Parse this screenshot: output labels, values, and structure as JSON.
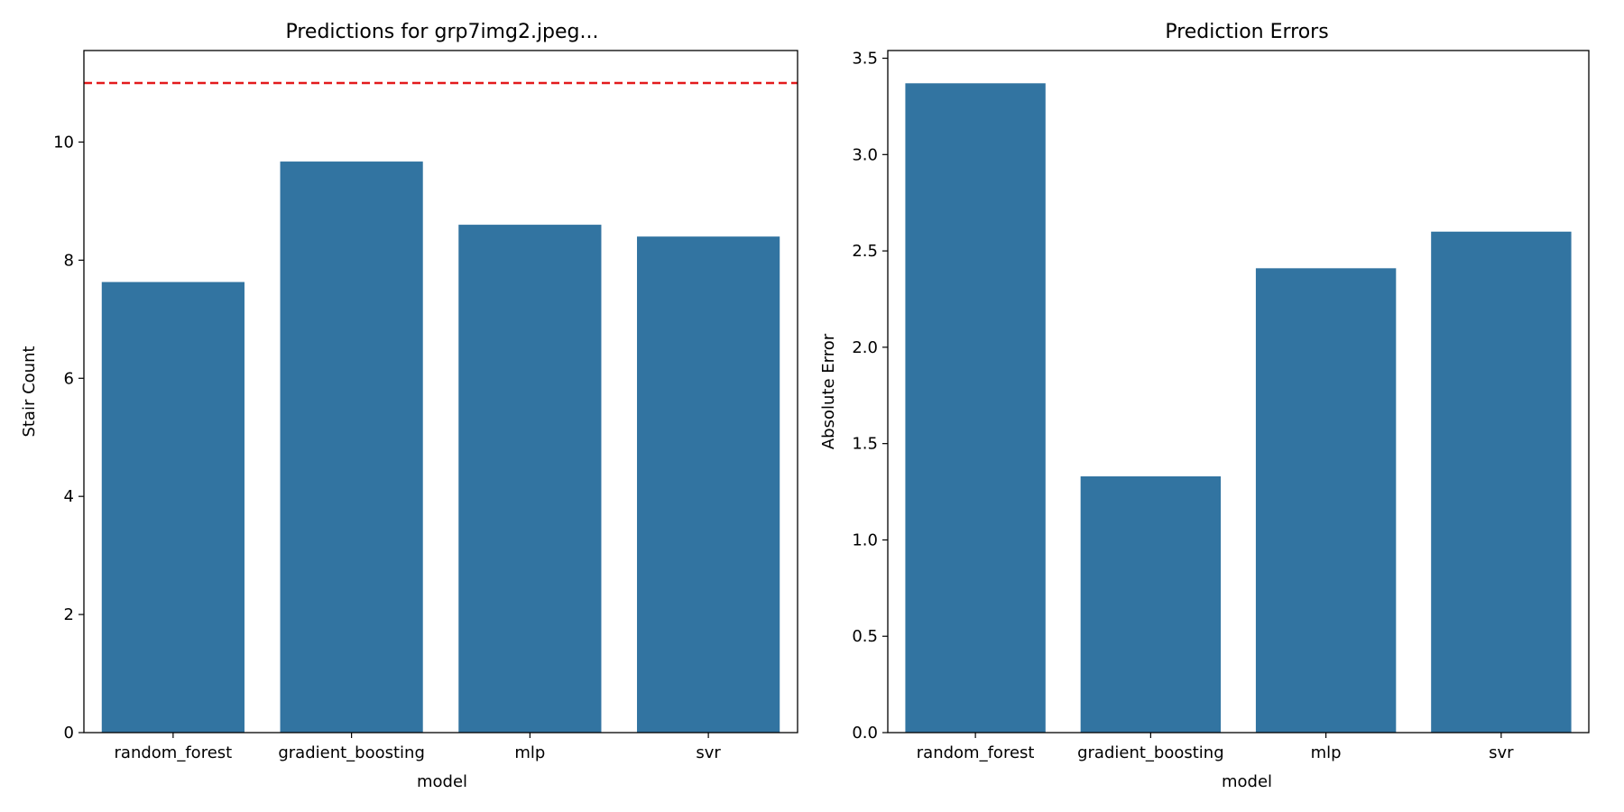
{
  "chart_data": [
    {
      "type": "bar",
      "title": "Predictions for grp7img2.jpeg...",
      "xlabel": "model",
      "ylabel": "Stair Count",
      "categories": [
        "random_forest",
        "gradient_boosting",
        "mlp",
        "svr"
      ],
      "values": [
        7.63,
        9.67,
        8.6,
        8.4
      ],
      "ylim": [
        0,
        11.55
      ],
      "yticks": [
        "0",
        "2",
        "4",
        "6",
        "8",
        "10"
      ],
      "ytick_values": [
        0,
        2,
        4,
        6,
        8,
        10
      ],
      "reference_line": {
        "y": 11,
        "color": "#e31a1c",
        "style": "dashed"
      },
      "bar_color": "#3274a1",
      "grid": false
    },
    {
      "type": "bar",
      "title": "Prediction Errors",
      "xlabel": "model",
      "ylabel": "Absolute Error",
      "categories": [
        "random_forest",
        "gradient_boosting",
        "mlp",
        "svr"
      ],
      "values": [
        3.37,
        1.33,
        2.41,
        2.6
      ],
      "ylim": [
        0,
        3.54
      ],
      "yticks": [
        "0.0",
        "0.5",
        "1.0",
        "1.5",
        "2.0",
        "2.5",
        "3.0",
        "3.5"
      ],
      "ytick_values": [
        0,
        0.5,
        1.0,
        1.5,
        2.0,
        2.5,
        3.0,
        3.5
      ],
      "bar_color": "#3274a1",
      "grid": false
    }
  ]
}
